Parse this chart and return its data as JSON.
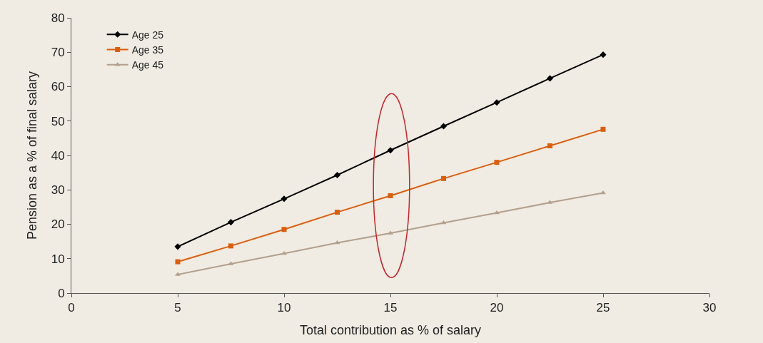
{
  "chart_data": {
    "type": "line",
    "xlabel": "Total contribution as % of salary",
    "ylabel": "Pension as a % of final salary",
    "x": [
      5,
      7.5,
      10,
      12.5,
      15,
      17.5,
      20,
      22.5,
      25
    ],
    "series": [
      {
        "name": "Age 25",
        "color": "#000000",
        "marker": "diamond",
        "values": [
          13.5,
          20.6,
          27.4,
          34.3,
          41.5,
          48.5,
          55.4,
          62.4,
          69.3
        ]
      },
      {
        "name": "Age 35",
        "color": "#d95f0e",
        "marker": "square",
        "values": [
          9.1,
          13.7,
          18.5,
          23.5,
          28.3,
          33.3,
          38,
          42.8,
          47.6
        ]
      },
      {
        "name": "Age 45",
        "color": "#b3a08e",
        "marker": "triangle",
        "values": [
          5.4,
          8.5,
          11.5,
          14.6,
          17.4,
          20.4,
          23.3,
          26.3,
          29.1
        ]
      }
    ],
    "xlim": [
      0,
      30
    ],
    "xticks": [
      0,
      5,
      10,
      15,
      20,
      25,
      30
    ],
    "ylim": [
      0,
      80
    ],
    "yticks": [
      0,
      10,
      20,
      30,
      40,
      50,
      60,
      70,
      80
    ],
    "grid": false,
    "legend": "top left",
    "line_style": "solid"
  }
}
